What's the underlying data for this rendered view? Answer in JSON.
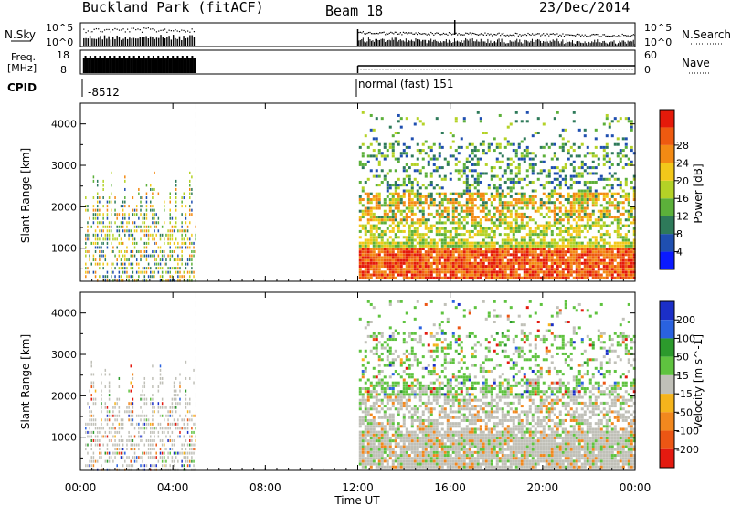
{
  "header": {
    "station": "Buckland Park (fitACF)",
    "beam": "Beam 18",
    "date": "23/Dec/2014"
  },
  "strip_panels": {
    "nsky_label": "N.Sky",
    "nsky_ticks": [
      "10^5",
      "10^0"
    ],
    "nsearch_label": "N.Search",
    "nsearch_ticks": [
      "10^5",
      "10^0"
    ],
    "freq_label": [
      "Freq.",
      "[MHz]"
    ],
    "freq_ticks": [
      "18",
      "8"
    ],
    "nave_label": "Nave",
    "nave_ticks": [
      "60",
      "0"
    ],
    "cpid_label": "CPID",
    "cpid_segments": [
      {
        "start_hour": 0.0,
        "end_hour": 5.0,
        "text": "-8512"
      },
      {
        "start_hour": 12.0,
        "end_hour": 24.0,
        "text": "normal (fast) 151"
      }
    ]
  },
  "chart_data": [
    {
      "type": "heatmap",
      "name": "power-panel",
      "ylabel": "Slant Range [km]",
      "xlabel": "Time UT",
      "xlim": [
        0,
        24
      ],
      "ylim": [
        200,
        4500
      ],
      "y_ticks": [
        1000,
        2000,
        3000,
        4000
      ],
      "colorbar": {
        "label": "Power [dB]",
        "ticks": [
          "4",
          "8",
          "12",
          "16",
          "20",
          "24",
          "28"
        ],
        "colors": [
          "#0a1aff",
          "#1f4fb0",
          "#2e7a5a",
          "#5cb03a",
          "#b4d226",
          "#f2c81a",
          "#f38a14",
          "#ee5a10",
          "#e51a0a"
        ]
      },
      "data_coverage": [
        {
          "start_hour": 0.0,
          "end_hour": 5.0,
          "description": "sparse vertical streaks"
        },
        {
          "start_hour": 12.0,
          "end_hour": 24.0,
          "description": "dense scatter"
        }
      ]
    },
    {
      "type": "heatmap",
      "name": "velocity-panel",
      "ylabel": "Slant Range [km]",
      "xlabel": "Time UT",
      "xlim": [
        0,
        24
      ],
      "ylim": [
        200,
        4500
      ],
      "y_ticks": [
        1000,
        2000,
        3000,
        4000
      ],
      "colorbar": {
        "label": "Velocity [m s^-1]",
        "ticks": [
          "200",
          "100",
          "50",
          "15",
          "-15",
          "-50",
          "-100",
          "-200"
        ],
        "colors": [
          "#1b2fc8",
          "#2a62e0",
          "#2c9a2c",
          "#5fc33f",
          "#c0c0b8",
          "#f5b41c",
          "#f2881e",
          "#ec5614",
          "#e41a10"
        ]
      }
    }
  ],
  "x_axis": {
    "tick_labels": [
      "00:00",
      "04:00",
      "08:00",
      "12:00",
      "16:00",
      "20:00",
      "00:00"
    ],
    "tick_hours": [
      0,
      4,
      8,
      12,
      16,
      20,
      24
    ],
    "label": "Time UT"
  }
}
